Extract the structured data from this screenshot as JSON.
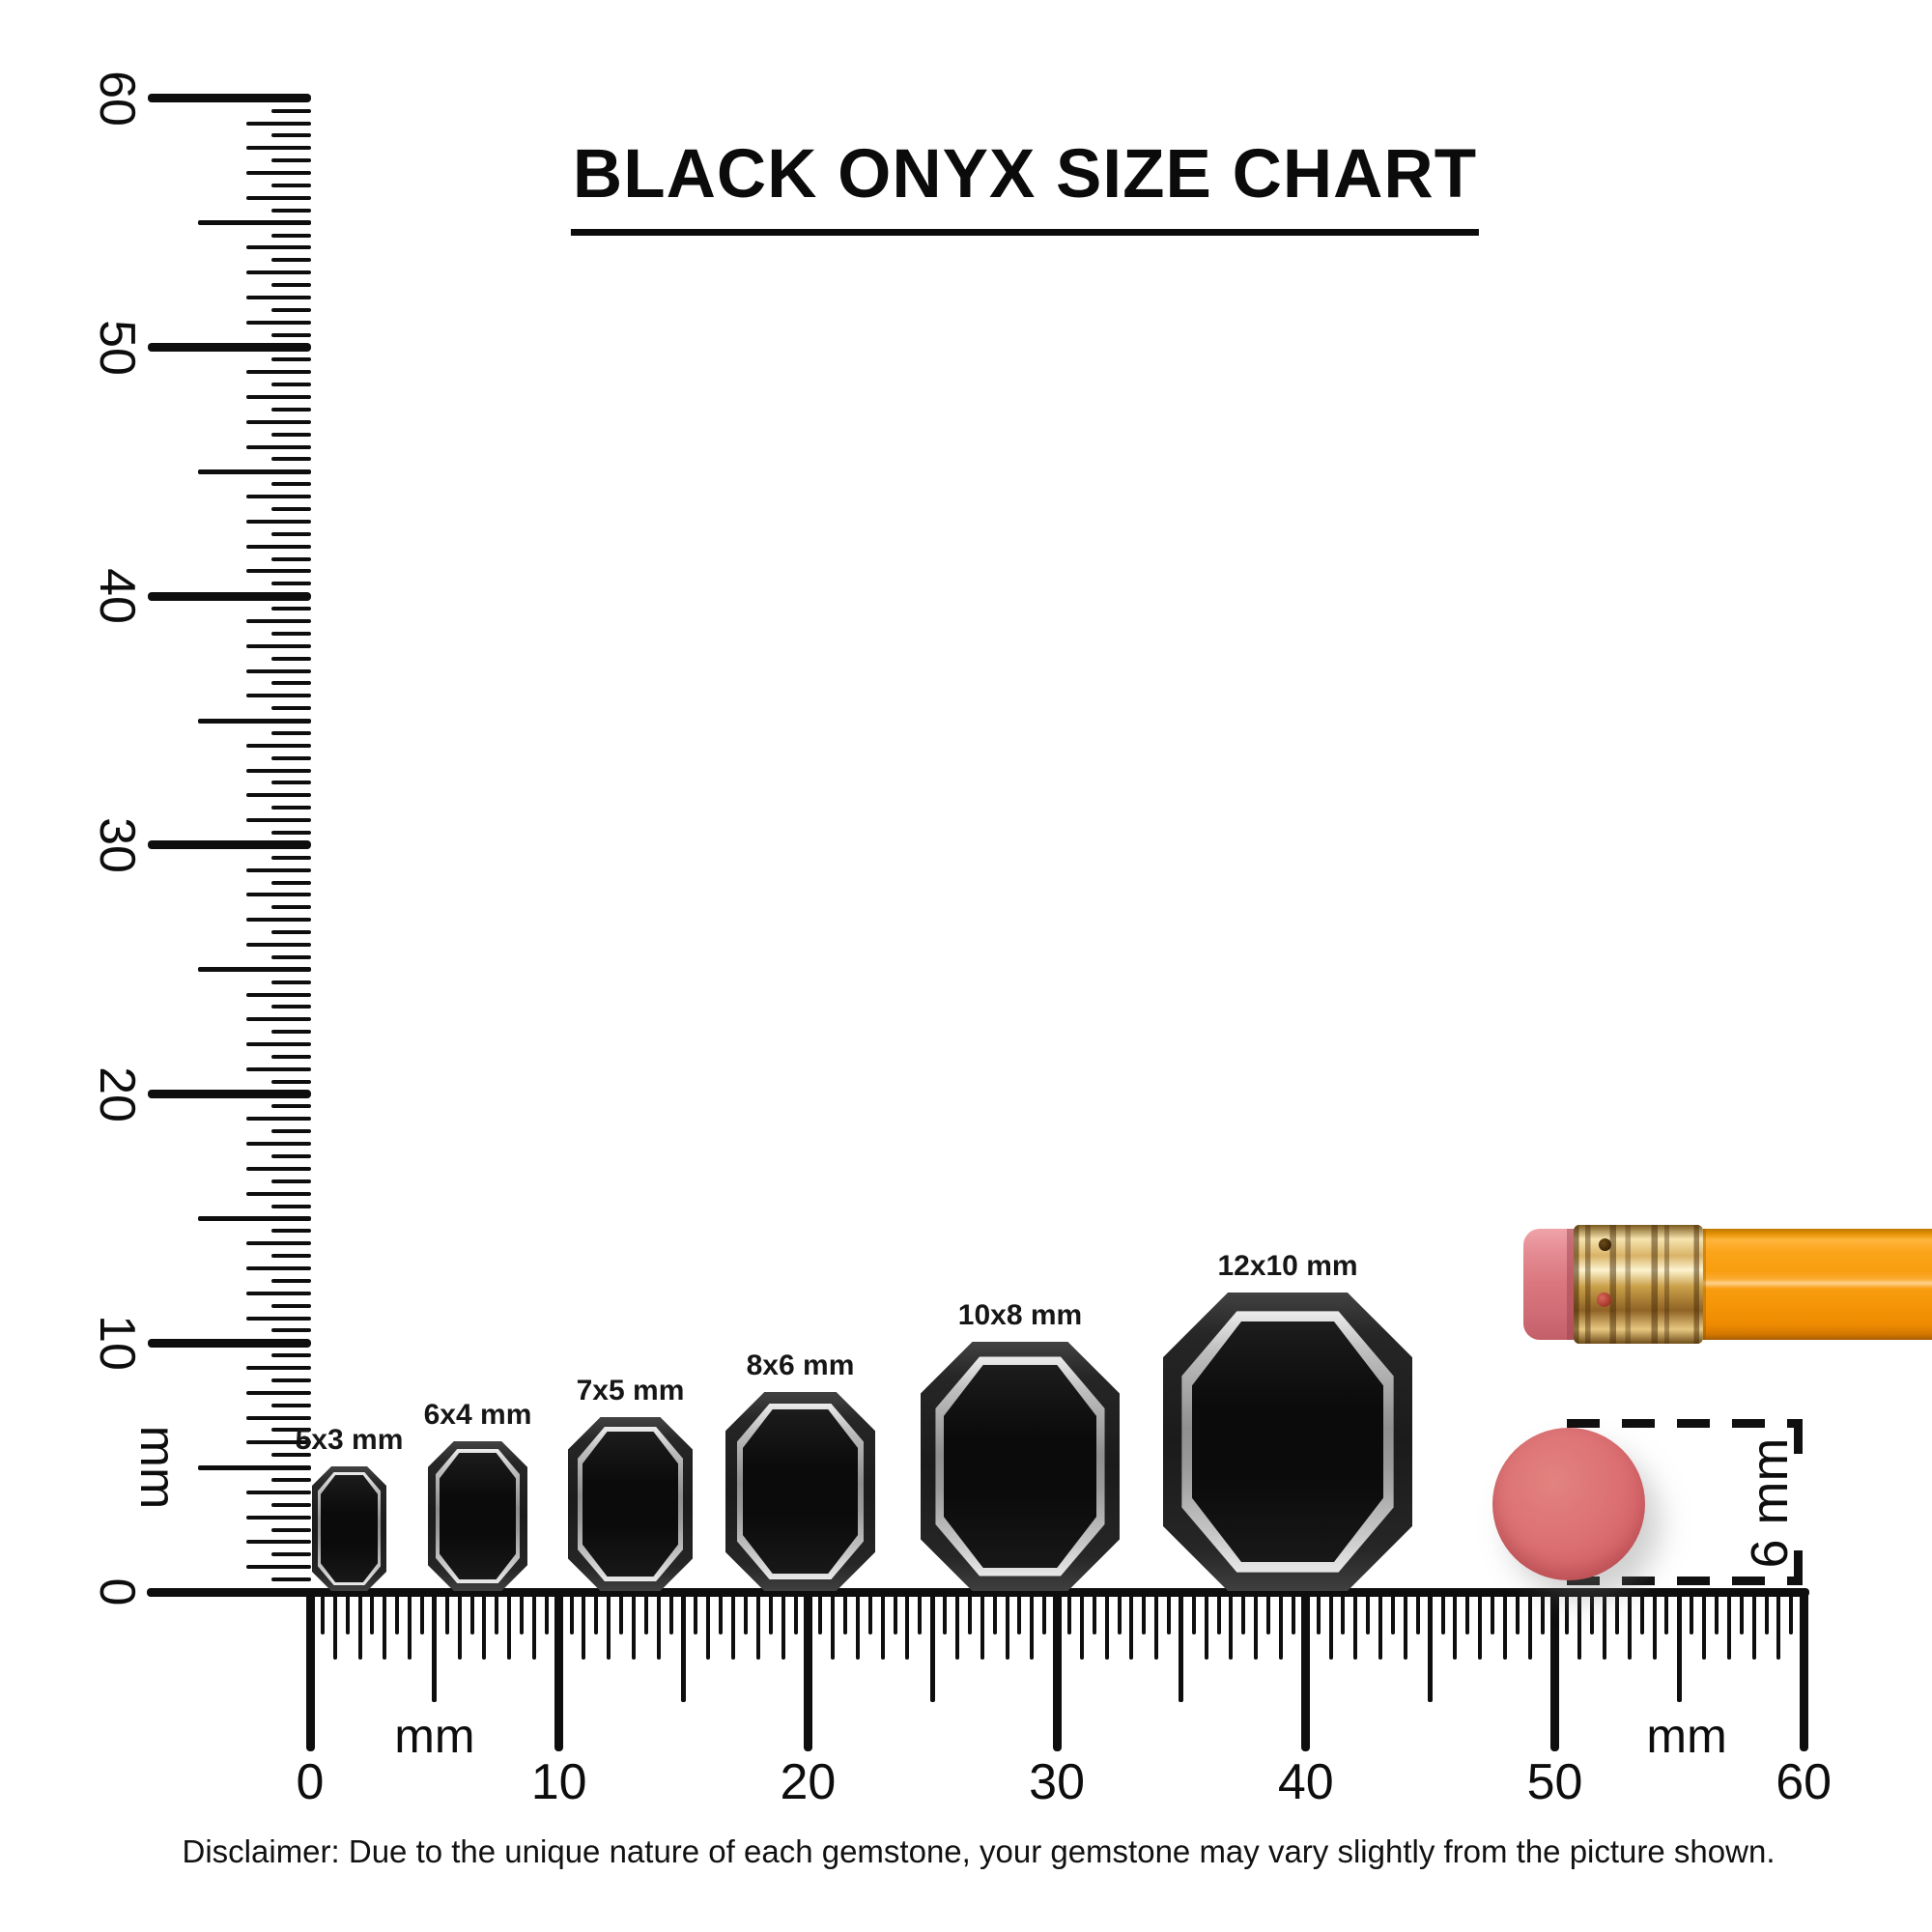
{
  "title": {
    "text": "BLACK ONYX SIZE CHART"
  },
  "disclaimer": "Disclaimer: Due to the unique nature of each gemstone, your gemstone may vary slightly from the picture shown.",
  "rulers": {
    "unit": "mm",
    "horizontal": {
      "tick_labels": [
        {
          "text": "0",
          "mm": 0
        },
        {
          "text": "10",
          "mm": 10
        },
        {
          "text": "20",
          "mm": 20
        },
        {
          "text": "30",
          "mm": 30
        },
        {
          "text": "40",
          "mm": 40
        },
        {
          "text": "50",
          "mm": 50
        },
        {
          "text": "60",
          "mm": 60
        }
      ],
      "unit_labels": [
        {
          "text": "mm",
          "mm": 5
        },
        {
          "text": "mm",
          "mm": 55.3
        }
      ],
      "range_mm": [
        0,
        60
      ],
      "minor_step_mm": 0.5
    },
    "vertical": {
      "tick_labels": [
        {
          "text": "60",
          "mm": 60
        },
        {
          "text": "50",
          "mm": 50
        },
        {
          "text": "40",
          "mm": 40
        },
        {
          "text": "30",
          "mm": 30
        },
        {
          "text": "20",
          "mm": 20
        },
        {
          "text": "10",
          "mm": 10
        },
        {
          "text": "0",
          "mm": 0
        }
      ],
      "unit_labels": [
        {
          "text": "mm",
          "mm": 5
        }
      ],
      "range_mm": [
        0,
        60
      ],
      "minor_step_mm": 0.5
    }
  },
  "chart_data": {
    "type": "table",
    "title": "BLACK ONYX SIZE CHART",
    "xlabel": "mm",
    "ylabel": "mm",
    "axis_range_mm": [
      0,
      60
    ],
    "gem_sizes": [
      {
        "label": "5x3 mm",
        "width_mm": 3,
        "length_mm": 5
      },
      {
        "label": "6x4 mm",
        "width_mm": 4,
        "length_mm": 6
      },
      {
        "label": "7x5 mm",
        "width_mm": 5,
        "length_mm": 7
      },
      {
        "label": "8x6 mm",
        "width_mm": 6,
        "length_mm": 8
      },
      {
        "label": "10x8 mm",
        "width_mm": 8,
        "length_mm": 10
      },
      {
        "label": "12x10 mm",
        "width_mm": 10,
        "length_mm": 12
      }
    ],
    "reference_objects": [
      {
        "name": "pencil",
        "description": "orange pencil with pink eraser and gold ferrule"
      },
      {
        "name": "pencil-eraser-top-view",
        "annotation": "6 mm"
      }
    ]
  },
  "gems": [
    {
      "label": "5x3 mm",
      "width_mm": 3,
      "length_mm": 5
    },
    {
      "label": "6x4 mm",
      "width_mm": 4,
      "length_mm": 6
    },
    {
      "label": "7x5 mm",
      "width_mm": 5,
      "length_mm": 7
    },
    {
      "label": "8x6 mm",
      "width_mm": 6,
      "length_mm": 8
    },
    {
      "label": "10x8 mm",
      "width_mm": 8,
      "length_mm": 10
    },
    {
      "label": "12x10 mm",
      "width_mm": 10,
      "length_mm": 12
    }
  ],
  "annotation": {
    "text": "6 mm"
  },
  "colors": {
    "ink": "#0e0e0e",
    "gem_black": "#0d0d0d",
    "gem_facet_gray": "#c8c8c8",
    "gem_rim_gray": "#2b2b2b",
    "pencil_body_orange": "#f89d10",
    "pencil_ferrule_gold": "#d9b367",
    "pencil_eraser_pink": "#da767d",
    "eraser_top_pink": "#d56468"
  }
}
